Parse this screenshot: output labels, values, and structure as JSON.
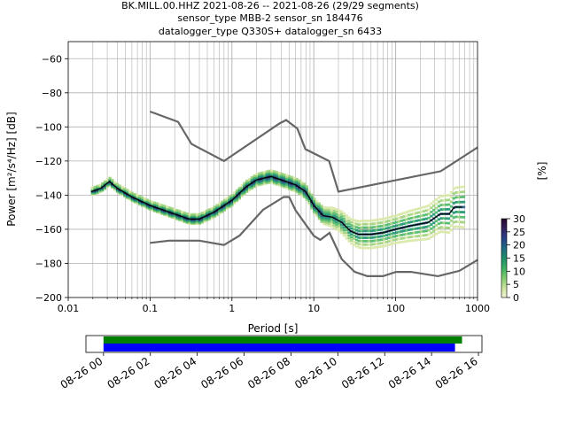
{
  "chart_data": {
    "type": "heatmap",
    "title_lines": [
      "BK.MILL.00.HHZ   2021-08-26 -- 2021-08-26  (29/29 segments)",
      "sensor_type MBB-2 sensor_sn 184476",
      "datalogger_type Q330S+ datalogger_sn 6433"
    ],
    "xlabel": "Period [s]",
    "ylabel": "Power [m²/s⁴/Hz] [dB]",
    "xscale": "log",
    "xlim": [
      0.01,
      1000
    ],
    "ylim": [
      -200,
      -50
    ],
    "grid": true,
    "x_ticks": [
      0.01,
      0.1,
      1,
      10,
      100,
      1000
    ],
    "x_tick_labels": [
      "0.01",
      "0.1",
      "1",
      "10",
      "100",
      "1000"
    ],
    "y_ticks": [
      -200,
      -180,
      -160,
      -140,
      -120,
      -100,
      -80,
      -60
    ],
    "y_tick_labels": [
      "−200",
      "−180",
      "−160",
      "−140",
      "−120",
      "−100",
      "−80",
      "−60"
    ],
    "colorbar": {
      "label": "[%]",
      "range": [
        0,
        30
      ],
      "ticks": [
        0,
        5,
        10,
        15,
        20,
        25,
        30
      ],
      "tick_labels": [
        "0",
        "5",
        "10",
        "15",
        "20",
        "25",
        "30"
      ],
      "colors": [
        "#f3f6d4",
        "#c8e39b",
        "#7fcc6c",
        "#3bb063",
        "#1e8e6c",
        "#1d6a83",
        "#2a3f8a",
        "#33205e",
        "#26072c"
      ]
    },
    "noise_models": [
      {
        "name": "high",
        "points": [
          [
            0.1,
            -91
          ],
          [
            0.22,
            -97
          ],
          [
            0.32,
            -110
          ],
          [
            0.8,
            -120
          ],
          [
            3.8,
            -98
          ],
          [
            4.6,
            -96
          ],
          [
            6.3,
            -101
          ],
          [
            7.9,
            -113
          ],
          [
            15.4,
            -120
          ],
          [
            20,
            -138
          ],
          [
            354.8,
            -126
          ],
          [
            1000,
            -112
          ]
        ]
      },
      {
        "name": "low",
        "points": [
          [
            0.1,
            -168
          ],
          [
            0.17,
            -166.7
          ],
          [
            0.4,
            -166.7
          ],
          [
            0.8,
            -169.2
          ],
          [
            1.24,
            -163.7
          ],
          [
            2.4,
            -148.6
          ],
          [
            4.3,
            -141.1
          ],
          [
            5.0,
            -141.1
          ],
          [
            6.0,
            -149
          ],
          [
            10,
            -163.8
          ],
          [
            12,
            -166.2
          ],
          [
            15.6,
            -162.1
          ],
          [
            21.9,
            -177.5
          ],
          [
            31.6,
            -185
          ],
          [
            45,
            -187.5
          ],
          [
            70,
            -187.5
          ],
          [
            101,
            -185
          ],
          [
            154,
            -185
          ],
          [
            328,
            -187.5
          ],
          [
            600,
            -184.4
          ],
          [
            1000,
            -178
          ]
        ]
      }
    ],
    "mean_curve": [
      [
        0.019,
        -138
      ],
      [
        0.025,
        -136
      ],
      [
        0.03,
        -133
      ],
      [
        0.032,
        -132
      ],
      [
        0.04,
        -136
      ],
      [
        0.06,
        -141
      ],
      [
        0.1,
        -146
      ],
      [
        0.2,
        -151
      ],
      [
        0.3,
        -154
      ],
      [
        0.4,
        -154
      ],
      [
        0.6,
        -150
      ],
      [
        1,
        -143
      ],
      [
        1.5,
        -135
      ],
      [
        2,
        -131
      ],
      [
        3,
        -129
      ],
      [
        4,
        -131
      ],
      [
        6,
        -134
      ],
      [
        8,
        -138
      ],
      [
        10,
        -146
      ],
      [
        13,
        -152
      ],
      [
        17,
        -153
      ],
      [
        22,
        -156
      ],
      [
        28,
        -161
      ],
      [
        35,
        -163
      ],
      [
        50,
        -163
      ],
      [
        70,
        -162
      ],
      [
        100,
        -160
      ],
      [
        150,
        -158
      ],
      [
        250,
        -156
      ],
      [
        350,
        -151
      ],
      [
        450,
        -151
      ],
      [
        520,
        -147
      ],
      [
        650,
        -147
      ]
    ],
    "band_halfwidth": [
      [
        0.019,
        2
      ],
      [
        1,
        3
      ],
      [
        10,
        4
      ],
      [
        20,
        6
      ],
      [
        40,
        8
      ],
      [
        100,
        8
      ],
      [
        300,
        10
      ],
      [
        700,
        12
      ]
    ],
    "band_colors": [
      "#d8e8a6",
      "#9ed27c",
      "#4cb868",
      "#1f9470",
      "#2a5a86",
      "#1e1a4a"
    ]
  },
  "timeline": {
    "x_tick_labels": [
      "08-26 00",
      "08-26 02",
      "08-26 04",
      "08-26 06",
      "08-26 08",
      "08-26 10",
      "08-26 12",
      "08-26 14",
      "08-26 16"
    ],
    "x_ticks_hours": [
      0,
      2,
      4,
      6,
      8,
      10,
      12,
      14,
      16
    ],
    "xlim_hours": [
      -0.75,
      16.15
    ],
    "green_bar_hours": [
      0,
      15.3
    ],
    "blue_bar_hours": [
      0,
      15.0
    ],
    "colors": {
      "green": "#008000",
      "blue": "#0000ff"
    }
  }
}
